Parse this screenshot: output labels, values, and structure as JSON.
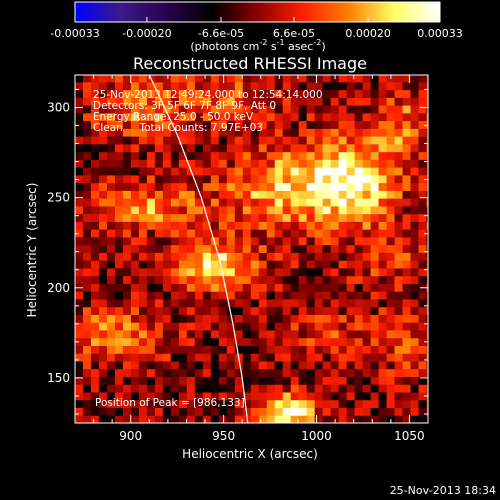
{
  "chart_data": {
    "type": "heatmap",
    "title": "Reconstructed RHESSI Image",
    "xlabel": "Heliocentric X (arcsec)",
    "ylabel": "Heliocentric Y (arcsec)",
    "xlim": [
      870,
      1060
    ],
    "ylim": [
      125,
      318
    ],
    "xticks": [
      900,
      950,
      1000,
      1050
    ],
    "yticks": [
      150,
      200,
      250,
      300
    ],
    "colorbar": {
      "range": [
        -0.00033,
        0.00033
      ],
      "ticks": [
        -0.00033,
        -0.0002,
        -6.6e-05,
        6.6e-05,
        0.0002,
        0.00033
      ],
      "tick_labels": [
        "-0.00033",
        "-0.00020",
        "-6.6e-05",
        "6.6e-05",
        "0.00020",
        "0.00033"
      ],
      "unit_label": {
        "prefix": "(photons cm",
        "sup1": "-2",
        "mid": " s",
        "sup2": "-1",
        "mid2": " asec",
        "sup3": "-2",
        "suffix": ")"
      },
      "colors": [
        "#0000ff",
        "#3b1a8a",
        "#2a0050",
        "#000000",
        "#8a0000",
        "#ff2000",
        "#ff8000",
        "#ffff66",
        "#ffffff"
      ]
    },
    "annotations": [
      "25-Nov-2013 12:49:24.000 to 12:54:14.000",
      "Detectors: 3F 5F 6F 7F 8F 9F, Att 0",
      "Energy Range: 25.0 - 50.0 keV",
      "Clean     Total Counts: 7.97E+03"
    ],
    "peak_label": "Position of Peak = [986,133]",
    "peak": [
      986,
      133
    ],
    "limb": [
      [
        910,
        318
      ],
      [
        925,
        285
      ],
      [
        938,
        250
      ],
      [
        948,
        215
      ],
      [
        955,
        180
      ],
      [
        960,
        150
      ],
      [
        963,
        125
      ]
    ],
    "hotspots": [
      {
        "x": 986,
        "y": 131,
        "amp": 1.0,
        "sx": 10,
        "sy": 7
      },
      {
        "x": 945,
        "y": 213,
        "amp": 0.8,
        "sx": 16,
        "sy": 10
      },
      {
        "x": 990,
        "y": 255,
        "amp": 0.7,
        "sx": 28,
        "sy": 16
      },
      {
        "x": 1022,
        "y": 262,
        "amp": 0.6,
        "sx": 16,
        "sy": 18
      },
      {
        "x": 905,
        "y": 245,
        "amp": 0.55,
        "sx": 22,
        "sy": 9
      },
      {
        "x": 890,
        "y": 174,
        "amp": 0.55,
        "sx": 20,
        "sy": 10
      },
      {
        "x": 905,
        "y": 300,
        "amp": 0.45,
        "sx": 18,
        "sy": 12
      },
      {
        "x": 955,
        "y": 305,
        "amp": 0.35,
        "sx": 18,
        "sy": 10
      },
      {
        "x": 1048,
        "y": 292,
        "amp": 0.4,
        "sx": 10,
        "sy": 14
      },
      {
        "x": 1045,
        "y": 170,
        "amp": 0.35,
        "sx": 12,
        "sy": 12
      },
      {
        "x": 1005,
        "y": 175,
        "amp": 0.3,
        "sx": 14,
        "sy": 10
      },
      {
        "x": 1040,
        "y": 215,
        "amp": 0.3,
        "sx": 14,
        "sy": 10
      }
    ]
  },
  "footer": {
    "timestamp": "25-Nov-2013 18:34"
  }
}
